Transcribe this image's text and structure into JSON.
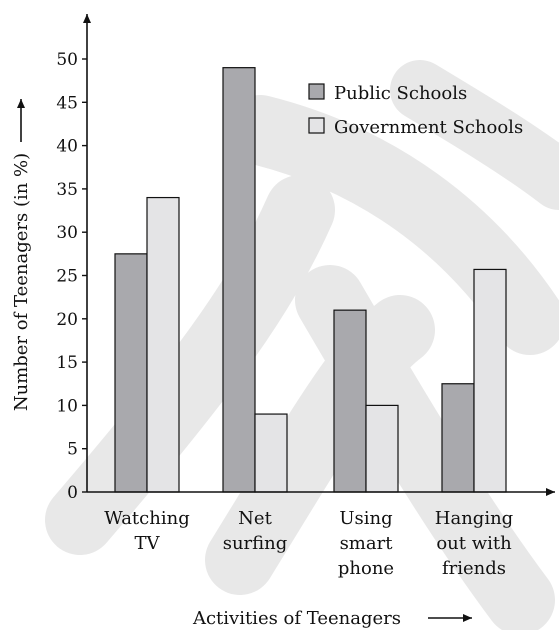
{
  "chart_data": {
    "type": "bar",
    "title": "",
    "xlabel": "Activities of Teenagers",
    "ylabel": "Number of Teenagers (in %)",
    "ylim": [
      0,
      50
    ],
    "yticks": [
      0,
      5,
      10,
      15,
      20,
      25,
      30,
      35,
      40,
      45,
      50
    ],
    "categories": [
      [
        "Watching",
        "TV"
      ],
      [
        "Net",
        "surfing"
      ],
      [
        "Using",
        "smart",
        "phone"
      ],
      [
        "Hanging",
        "out with",
        "friends"
      ]
    ],
    "series": [
      {
        "name": "Public Schools",
        "values": [
          27.5,
          49,
          21,
          12.5
        ],
        "color": "#a9a9ad"
      },
      {
        "name": "Government Schools",
        "values": [
          34,
          9,
          10,
          25.7
        ],
        "color": "#e4e4e6"
      }
    ],
    "legend": "top-right",
    "grid": false,
    "watermark_color": "#e8e8e8"
  }
}
